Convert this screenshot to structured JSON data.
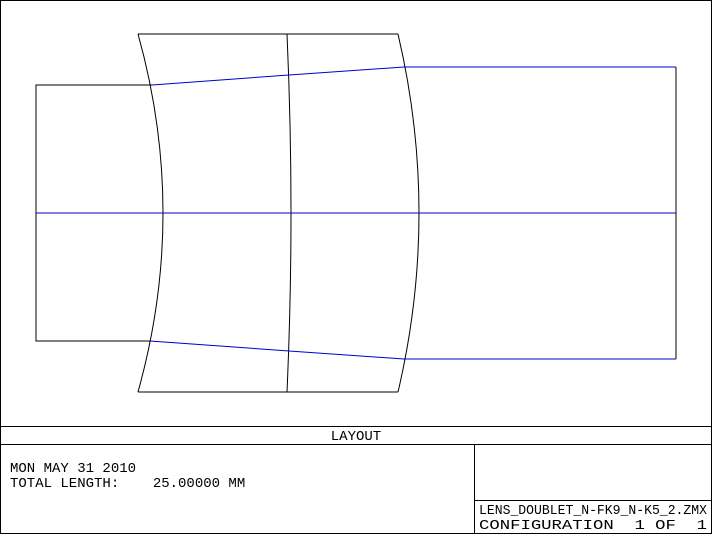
{
  "title": "LAYOUT",
  "date": "MON MAY 31 2010",
  "total_length": "TOTAL LENGTH:    25.00000 MM",
  "file": "LENS_DOUBLET_N-FK9_N-K5_2.ZMX",
  "configuration": "CONFIGURATION  1 OF  1"
}
